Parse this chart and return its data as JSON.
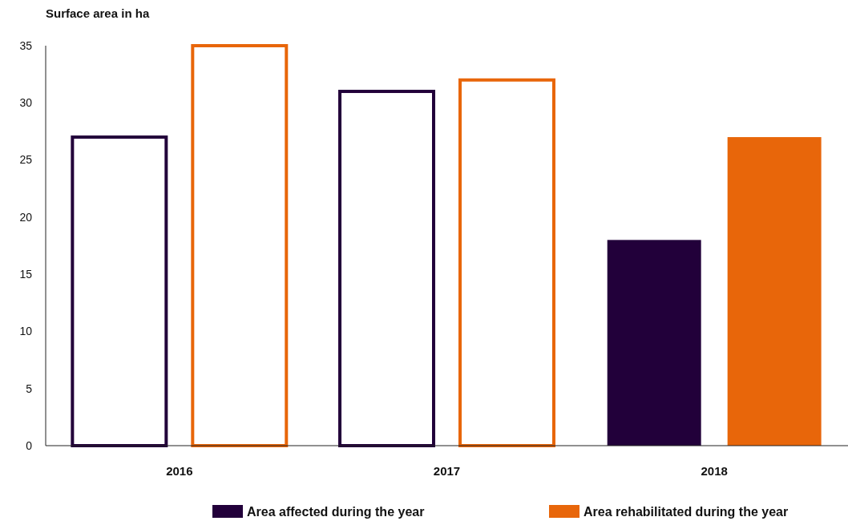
{
  "chart_data": {
    "type": "bar",
    "ylabel": "Surface area in ha",
    "categories": [
      "2016",
      "2017",
      "2018"
    ],
    "series": [
      {
        "name": "Area affected during the year",
        "color": "#22003a",
        "colors": [
          "#ffffff",
          "#ffffff",
          "#22003a"
        ],
        "values": [
          27,
          31,
          18
        ]
      },
      {
        "name": "Area rehabilitated during the year",
        "color": "#e8660a",
        "colors": [
          "#ffffff",
          "#ffffff",
          "#e8660a"
        ],
        "values": [
          35,
          32,
          27
        ]
      }
    ],
    "ylim": [
      0,
      35
    ],
    "yticks": [
      0,
      5,
      10,
      15,
      20,
      25,
      30,
      35
    ],
    "grid": false,
    "legend": "bottom"
  }
}
